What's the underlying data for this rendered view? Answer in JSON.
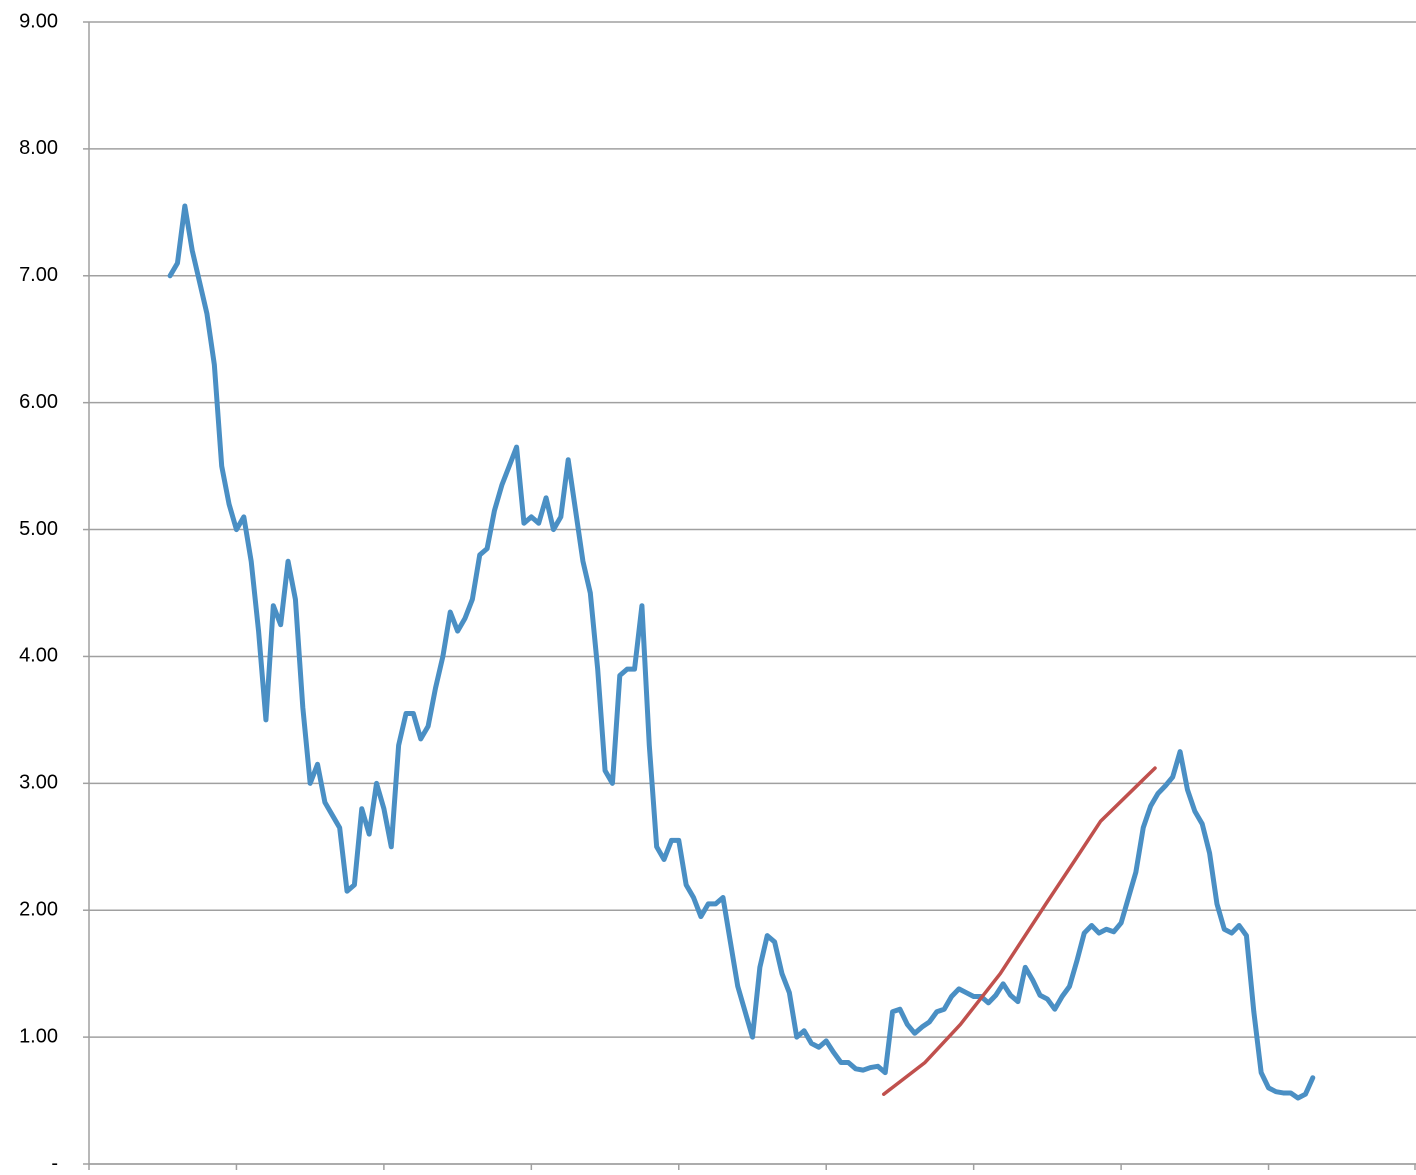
{
  "chart_data": {
    "type": "line",
    "xlim": [
      0,
      9
    ],
    "ylim": [
      0,
      9
    ],
    "yticks": [
      {
        "value": 0,
        "label": "-"
      },
      {
        "value": 1,
        "label": "1.00"
      },
      {
        "value": 2,
        "label": "2.00"
      },
      {
        "value": 3,
        "label": "3.00"
      },
      {
        "value": 4,
        "label": "4.00"
      },
      {
        "value": 5,
        "label": "5.00"
      },
      {
        "value": 6,
        "label": "6.00"
      },
      {
        "value": 7,
        "label": "7.00"
      },
      {
        "value": 8,
        "label": "8.00"
      },
      {
        "value": 9,
        "label": "9.00"
      }
    ],
    "grid": true,
    "series": [
      {
        "color": "#4a8fc4",
        "x": [
          0.55,
          0.6,
          0.65,
          0.7,
          0.75,
          0.8,
          0.85,
          0.9,
          0.95,
          1.0,
          1.05,
          1.1,
          1.15,
          1.2,
          1.25,
          1.3,
          1.35,
          1.4,
          1.45,
          1.5,
          1.55,
          1.6,
          1.65,
          1.7,
          1.75,
          1.8,
          1.85,
          1.9,
          1.95,
          2.0,
          2.05,
          2.1,
          2.15,
          2.2,
          2.25,
          2.3,
          2.35,
          2.4,
          2.45,
          2.5,
          2.55,
          2.6,
          2.65,
          2.7,
          2.75,
          2.8,
          2.85,
          2.9,
          2.95,
          3.0,
          3.05,
          3.1,
          3.15,
          3.2,
          3.25,
          3.3,
          3.35,
          3.4,
          3.45,
          3.5,
          3.55,
          3.6,
          3.65,
          3.7,
          3.75,
          3.8,
          3.85,
          3.9,
          3.95,
          4.0,
          4.05,
          4.1,
          4.15,
          4.2,
          4.25,
          4.3,
          4.35,
          4.4,
          4.45,
          4.5,
          4.55,
          4.6,
          4.65,
          4.7,
          4.75,
          4.8,
          4.85,
          4.9,
          4.95,
          5.0,
          5.05,
          5.1,
          5.15,
          5.2,
          5.25,
          5.3,
          5.35,
          5.4,
          5.45,
          5.5,
          5.55,
          5.6,
          5.65,
          5.7,
          5.75,
          5.8,
          5.85,
          5.9,
          5.95,
          6.0,
          6.05,
          6.1,
          6.15,
          6.2,
          6.25,
          6.3,
          6.35,
          6.4,
          6.45,
          6.5,
          6.55,
          6.6,
          6.65,
          6.7,
          6.75,
          6.8,
          6.85,
          6.9,
          6.95,
          7.0,
          7.05,
          7.1,
          7.15,
          7.2,
          7.25,
          7.3,
          7.35,
          7.4,
          7.45,
          7.5,
          7.55,
          7.6,
          7.65,
          7.7,
          7.75,
          7.8,
          7.85,
          7.9,
          7.95,
          8.0,
          8.05,
          8.1,
          8.15,
          8.2,
          8.25,
          8.3
        ],
        "values": [
          7.0,
          7.1,
          7.55,
          7.2,
          6.95,
          6.7,
          6.3,
          5.5,
          5.2,
          5.0,
          5.1,
          4.75,
          4.2,
          3.5,
          4.4,
          4.25,
          4.75,
          4.45,
          3.6,
          3.0,
          3.15,
          2.85,
          2.75,
          2.65,
          2.15,
          2.2,
          2.8,
          2.6,
          3.0,
          2.8,
          2.5,
          3.3,
          3.55,
          3.55,
          3.35,
          3.45,
          3.75,
          4.0,
          4.35,
          4.2,
          4.3,
          4.45,
          4.8,
          4.85,
          5.15,
          5.35,
          5.5,
          5.65,
          5.05,
          5.1,
          5.05,
          5.25,
          5.0,
          5.1,
          5.55,
          5.15,
          4.75,
          4.5,
          3.9,
          3.1,
          3.0,
          3.85,
          3.9,
          3.9,
          4.4,
          3.3,
          2.5,
          2.4,
          2.55,
          2.55,
          2.2,
          2.1,
          1.95,
          2.05,
          2.05,
          2.1,
          1.75,
          1.4,
          1.2,
          1.0,
          1.55,
          1.8,
          1.75,
          1.5,
          1.35,
          1.0,
          1.05,
          0.95,
          0.92,
          0.97,
          0.88,
          0.8,
          0.8,
          0.75,
          0.74,
          0.76,
          0.77,
          0.72,
          1.2,
          1.22,
          1.1,
          1.03,
          1.08,
          1.12,
          1.2,
          1.22,
          1.32,
          1.38,
          1.35,
          1.32,
          1.32,
          1.27,
          1.33,
          1.42,
          1.33,
          1.28,
          1.55,
          1.45,
          1.33,
          1.3,
          1.22,
          1.32,
          1.4,
          1.6,
          1.82,
          1.88,
          1.82,
          1.85,
          1.83,
          1.9,
          2.1,
          2.3,
          2.65,
          2.82,
          2.92,
          2.98,
          3.05,
          3.25,
          2.95,
          2.78,
          2.68,
          2.45,
          2.05,
          1.85,
          1.82,
          1.88,
          1.8,
          1.2,
          0.72,
          0.6,
          0.57,
          0.56,
          0.56,
          0.52,
          0.55,
          0.68
        ]
      },
      {
        "color": "#c0504d",
        "x": [
          5.39,
          5.67,
          5.91,
          6.18,
          6.49,
          6.69,
          6.86,
          7.23
        ],
        "values": [
          0.55,
          0.8,
          1.1,
          1.5,
          2.05,
          2.4,
          2.7,
          3.12
        ]
      }
    ]
  }
}
